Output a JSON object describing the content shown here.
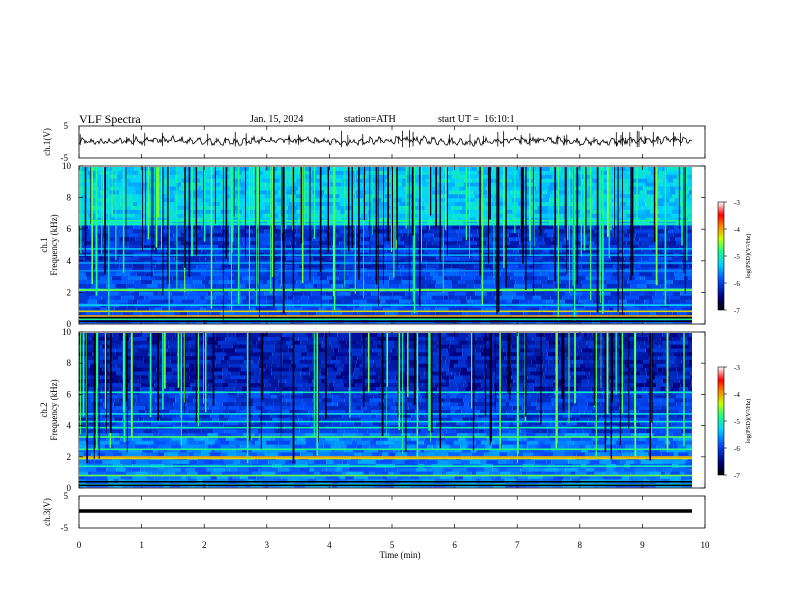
{
  "header": {
    "title": "VLF Spectra",
    "date": "Jan. 15, 2024",
    "station": "station=ATH",
    "start": "start UT =  16:10:1"
  },
  "chart_data": [
    {
      "type": "line",
      "name": "ch1-waveform",
      "ylabel": "ch.1(V)",
      "yticks": [
        "5",
        "-5"
      ],
      "ylim": [
        -5,
        5
      ],
      "xlim": [
        0,
        10
      ],
      "baseline": 0,
      "note_values": "noisy waveform around 0 V with occasional spikes"
    },
    {
      "type": "heatmap",
      "name": "ch1-spectrogram",
      "ylabel_top": "ch.1",
      "ylabel": "Frequency (kHz)",
      "yticks": [
        "0",
        "2",
        "4",
        "6",
        "8",
        "10"
      ],
      "ylim": [
        0,
        10
      ],
      "xlim": [
        0,
        9.8
      ],
      "colorbar": {
        "label": "log(PSD)(V²/Hz)",
        "ticks": [
          "-3",
          "-4",
          "-5",
          "-6",
          "-7"
        ],
        "range": [
          -7,
          -3
        ]
      }
    },
    {
      "type": "heatmap",
      "name": "ch2-spectrogram",
      "ylabel_top": "ch.2",
      "ylabel": "Frequency (kHz)",
      "yticks": [
        "0",
        "2",
        "4",
        "6",
        "8",
        "10"
      ],
      "ylim": [
        0,
        10
      ],
      "xlim": [
        0,
        9.8
      ],
      "colorbar": {
        "label": "log(PSD)(V²/Hz)",
        "ticks": [
          "-3",
          "-4",
          "-5",
          "-6",
          "-7"
        ],
        "range": [
          -7,
          -3
        ]
      }
    },
    {
      "type": "line",
      "name": "ch3-waveform",
      "ylabel": "ch.3(V)",
      "yticks": [
        "5",
        "-5"
      ],
      "ylim": [
        -5,
        5
      ],
      "xlim": [
        0,
        10
      ],
      "constant_value": -1.5
    }
  ],
  "xaxis": {
    "label": "Time (min)",
    "ticks": [
      "0",
      "1",
      "2",
      "3",
      "4",
      "5",
      "6",
      "7",
      "8",
      "9",
      "10"
    ]
  },
  "colors": {
    "spectrogram_low": "#0a0a6e",
    "spectrogram_mid": "#00c8ff",
    "spectrogram_high": "#ff0000"
  }
}
